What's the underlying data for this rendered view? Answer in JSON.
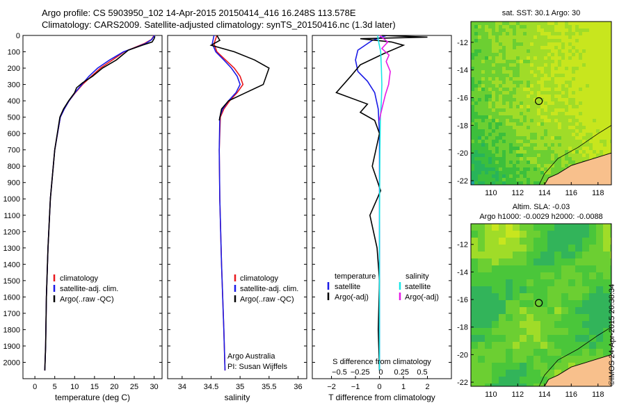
{
  "header": {
    "line1": "Argo profile: CS 5903950_102 14-Apr-2015 20150414_416 16.248S 113.578E",
    "line2": "Climatology: CARS2009. Satellite-adjusted climatology: synTS_20150416.nc (1.3d later)"
  },
  "stamp": "©IMOS 24-Apr-2015 20:38:34",
  "colors": {
    "climatology": "#e8171d",
    "satellite": "#1a1ae6",
    "argo": "#000000",
    "sal_satellite": "#19e6e6",
    "sal_argo": "#e619e6",
    "land": "#f8c08c",
    "coast": "#000000"
  },
  "chart_data": [
    {
      "id": "temperature",
      "type": "line",
      "xlabel": "temperature (deg C)",
      "ylabel": "",
      "xlim": [
        -3,
        32
      ],
      "ylim": [
        2100,
        0
      ],
      "xticks": [
        0,
        5,
        10,
        15,
        20,
        25,
        30
      ],
      "yticks": [
        0,
        100,
        200,
        300,
        400,
        500,
        600,
        700,
        800,
        900,
        1000,
        1100,
        1200,
        1300,
        1400,
        1500,
        1600,
        1700,
        1800,
        1900,
        2000
      ],
      "legend": [
        "climatology",
        "satellite-adj. clim.",
        "Argo(..raw -QC)"
      ],
      "series": [
        {
          "name": "climatology",
          "color_key": "climatology",
          "x": [
            30.0,
            29.3,
            27.5,
            25.0,
            22.5,
            19.5,
            16.5,
            14.2,
            12.0,
            10.2,
            8.6,
            7.4,
            6.4,
            5.0,
            3.9,
            3.3,
            2.9,
            2.7,
            2.5
          ],
          "y": [
            0,
            25,
            50,
            75,
            100,
            150,
            200,
            250,
            300,
            350,
            400,
            450,
            500,
            700,
            1000,
            1300,
            1600,
            1900,
            2050
          ]
        },
        {
          "name": "satellite-adj. clim.",
          "color_key": "satellite",
          "x": [
            30.1,
            29.4,
            27.8,
            25.2,
            22.3,
            18.8,
            15.8,
            13.6,
            11.8,
            10.1,
            8.6,
            7.4,
            6.4,
            5.0,
            3.9,
            3.3,
            2.9,
            2.7,
            2.5
          ],
          "y": [
            0,
            25,
            50,
            75,
            100,
            150,
            200,
            250,
            300,
            350,
            400,
            450,
            500,
            700,
            1000,
            1300,
            1600,
            1900,
            2050
          ]
        },
        {
          "name": "Argo(..raw -QC)",
          "color_key": "argo",
          "x": [
            30.2,
            30.0,
            29.5,
            27.0,
            23.5,
            20.5,
            17.0,
            14.5,
            12.0,
            10.5,
            10.0,
            8.5,
            7.2,
            6.3,
            5.0,
            3.9,
            3.3,
            2.9,
            2.7,
            2.5
          ],
          "y": [
            5,
            20,
            40,
            60,
            90,
            150,
            200,
            250,
            290,
            320,
            350,
            400,
            450,
            500,
            700,
            1000,
            1300,
            1600,
            1900,
            2050
          ]
        }
      ]
    },
    {
      "id": "salinity",
      "type": "line",
      "xlabel": "salinity",
      "ylabel": "",
      "xlim": [
        33.75,
        36.15
      ],
      "ylim": [
        2100,
        0
      ],
      "xticks": [
        34,
        34.5,
        35,
        35.5,
        36
      ],
      "yticks": [
        0,
        100,
        200,
        300,
        400,
        500,
        600,
        700,
        800,
        900,
        1000,
        1100,
        1200,
        1300,
        1400,
        1500,
        1600,
        1700,
        1800,
        1900,
        2000
      ],
      "legend": [
        "climatology",
        "satellite-adj. clim."
      ],
      "legend_last": "Argo(..raw -QC)",
      "annotation": [
        "Argo Australia",
        "PI: Susan Wijffels"
      ],
      "series": [
        {
          "name": "climatology",
          "color_key": "climatology",
          "x": [
            34.6,
            34.55,
            34.6,
            34.75,
            34.9,
            35.0,
            35.05,
            34.95,
            34.82,
            34.72,
            34.66,
            34.64,
            34.65,
            34.68,
            34.72,
            34.74
          ],
          "y": [
            0,
            50,
            100,
            150,
            200,
            250,
            300,
            350,
            400,
            450,
            500,
            700,
            1000,
            1400,
            1800,
            2050
          ]
        },
        {
          "name": "satellite-adj. clim.",
          "color_key": "satellite",
          "x": [
            34.55,
            34.52,
            34.58,
            34.72,
            34.85,
            34.95,
            35.0,
            34.93,
            34.8,
            34.7,
            34.65,
            34.64,
            34.65,
            34.68,
            34.72,
            34.74
          ],
          "y": [
            0,
            50,
            100,
            150,
            200,
            250,
            300,
            350,
            400,
            450,
            500,
            700,
            1000,
            1400,
            1800,
            2050
          ]
        },
        {
          "name": "Argo(..raw -QC)",
          "color_key": "argo",
          "x": [
            34.6,
            34.65,
            34.5,
            34.9,
            35.25,
            35.5,
            35.4,
            35.1,
            34.8,
            34.68,
            34.64
          ],
          "y": [
            0,
            30,
            60,
            100,
            150,
            200,
            300,
            350,
            400,
            450,
            520
          ]
        }
      ]
    },
    {
      "id": "difference",
      "type": "line",
      "xlabel": "T difference from climatology",
      "top_label": "S difference from climatology",
      "xlim": [
        -2.8,
        3.0
      ],
      "ylim": [
        2100,
        0
      ],
      "xticks": [
        -2,
        -1,
        0,
        1,
        2
      ],
      "xtick_labels": [
        "−2",
        "−1",
        "0",
        "1",
        "2"
      ],
      "sticks": [
        -0.5,
        -0.25,
        0,
        0.25,
        0.5
      ],
      "stick_labels": [
        "−0.5",
        "−0.25",
        "0",
        "0.25",
        "0.5"
      ],
      "yticks": [
        0,
        100,
        200,
        300,
        400,
        500,
        600,
        700,
        800,
        900,
        1000,
        1100,
        1200,
        1300,
        1400,
        1500,
        1600,
        1700,
        1800,
        1900,
        2000
      ],
      "legend": {
        "temperature_title": "temperature",
        "salinity_title": "salinity",
        "t_satellite": "satellite",
        "t_argo": "Argo(-adj)",
        "s_satellite": "satellite",
        "s_argo": "Argo(-adj)"
      },
      "series": [
        {
          "name": "temperature satellite",
          "color_key": "satellite",
          "x": [
            0.3,
            -0.3,
            -0.6,
            -0.9,
            -1.0,
            -0.9,
            -0.5,
            -0.2,
            -0.05,
            0.0,
            0.0,
            0.0,
            0.0
          ],
          "y": [
            0,
            30,
            60,
            90,
            150,
            220,
            280,
            350,
            450,
            600,
            1000,
            1500,
            2050
          ]
        },
        {
          "name": "temperature Argo(-adj)",
          "color_key": "argo",
          "x": [
            0.1,
            2.0,
            -0.8,
            0.5,
            1.0,
            0.2,
            -0.8,
            -1.2,
            -1.8,
            -0.5,
            -0.8,
            -0.2,
            0.0,
            -0.3,
            0.05,
            -0.4,
            -0.1,
            0.0,
            -0.05,
            0.0
          ],
          "y": [
            0,
            10,
            20,
            40,
            60,
            110,
            180,
            250,
            350,
            420,
            470,
            520,
            600,
            800,
            950,
            1100,
            1300,
            1500,
            1800,
            2050
          ]
        },
        {
          "name": "salinity satellite",
          "color_key": "sal_satellite",
          "x": [
            -0.08,
            -0.02,
            0.05,
            0.08,
            0.1,
            0.08,
            0.04,
            0.02,
            0.01,
            0.0,
            0.0,
            0.0
          ],
          "y": [
            0,
            50,
            100,
            200,
            300,
            400,
            500,
            700,
            900,
            1200,
            1600,
            2050
          ]
        },
        {
          "name": "salinity Argo(-adj)",
          "color_key": "sal_argo",
          "x": [
            0.0,
            0.35,
            0.1,
            0.4,
            0.28,
            0.45,
            0.38,
            0.25,
            0.15,
            0.05,
            0.0
          ],
          "y": [
            0,
            40,
            80,
            120,
            160,
            220,
            300,
            360,
            420,
            480,
            520
          ]
        }
      ]
    },
    {
      "id": "sst-map",
      "type": "heatmap",
      "title": "sat. SST: 30.1  Argo: 30",
      "xlim": [
        108.5,
        119.0
      ],
      "ylim": [
        -22.3,
        -10.5
      ],
      "xticks": [
        110,
        112,
        114,
        116,
        118
      ],
      "yticks": [
        -12,
        -14,
        -16,
        -18,
        -20,
        -22
      ],
      "marker": {
        "lon": 113.578,
        "lat": -16.248
      }
    },
    {
      "id": "sla-map",
      "type": "heatmap",
      "title_line1": "Altim. SLA: -0.03",
      "title_line2": "Argo h1000: -0.0029 h2000: -0.0088",
      "xlim": [
        108.5,
        119.0
      ],
      "ylim": [
        -22.3,
        -10.5
      ],
      "xticks": [
        110,
        112,
        114,
        116,
        118
      ],
      "yticks": [
        -12,
        -14,
        -16,
        -18,
        -20,
        -22
      ],
      "marker": {
        "lon": 113.578,
        "lat": -16.248
      }
    }
  ]
}
